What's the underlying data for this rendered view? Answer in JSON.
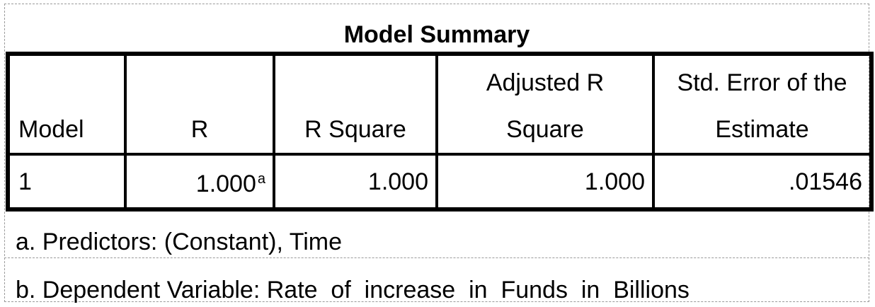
{
  "table": {
    "title": "Model Summary",
    "headers": {
      "model": "Model",
      "r": "R",
      "r_square": "R Square",
      "adj_r_square_line1": "Adjusted R",
      "adj_r_square_line2": "Square",
      "std_error_line1": "Std. Error of the",
      "std_error_line2": "Estimate"
    },
    "rows": [
      {
        "model": "1",
        "r": "1.000",
        "r_superscript": "a",
        "r_square": "1.000",
        "adj_r_square": "1.000",
        "std_error": ".01546"
      }
    ]
  },
  "footnotes": {
    "a": "a. Predictors: (Constant), Time",
    "b": "b. Dependent Variable: Rate  of  increase  in  Funds  in  Billions"
  }
}
